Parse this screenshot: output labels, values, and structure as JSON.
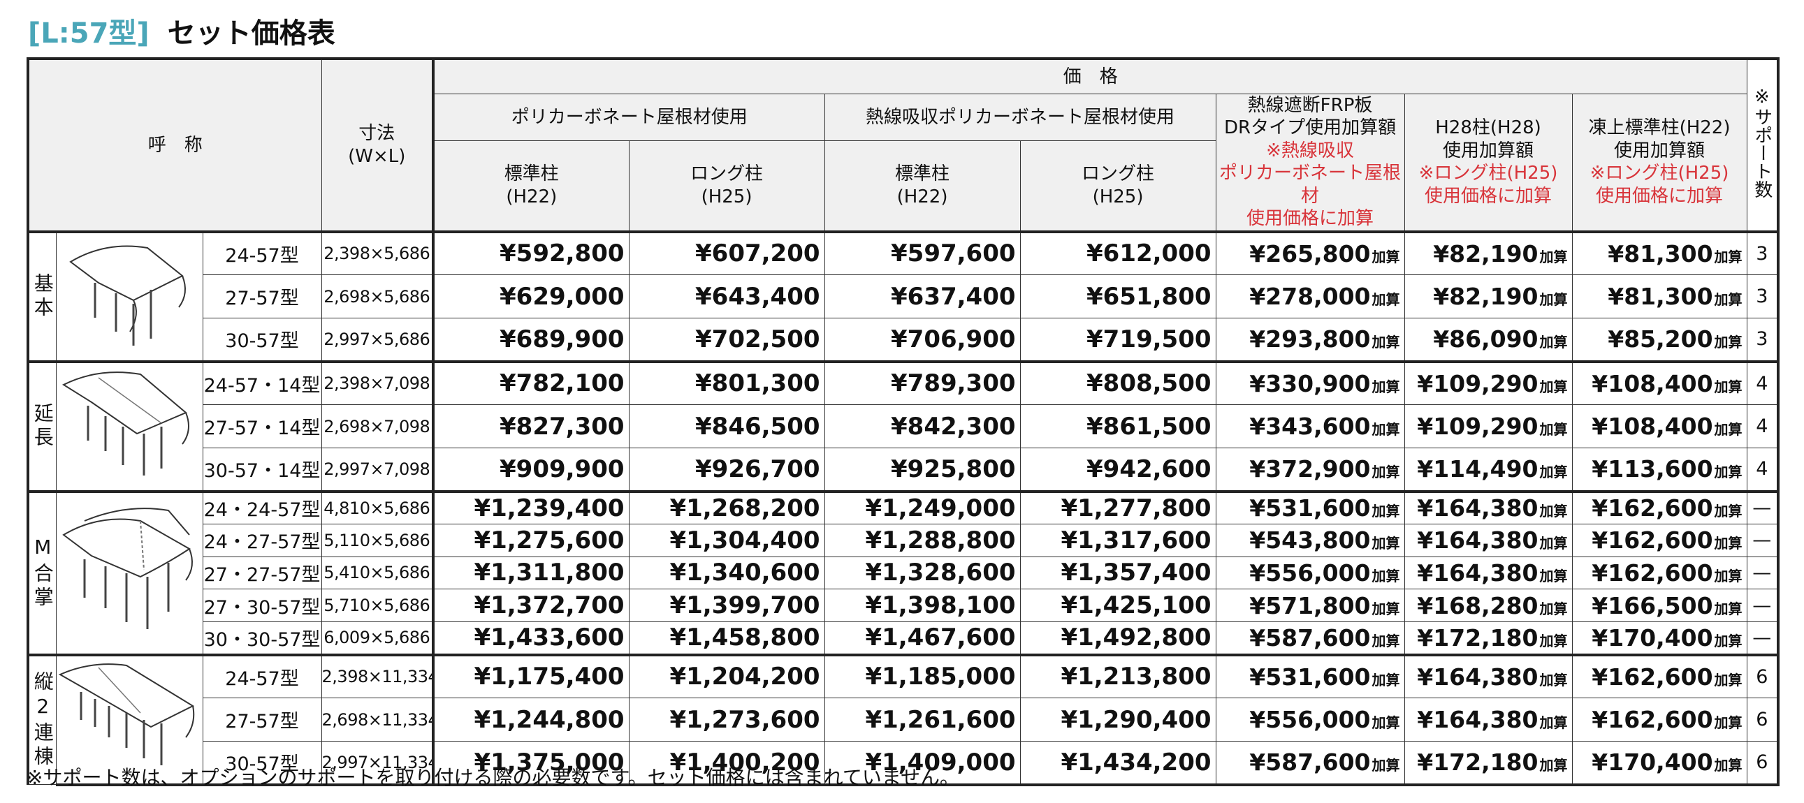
{
  "title": {
    "tag": "[L:57型]",
    "main": "セット価格表"
  },
  "header": {
    "name": "呼　称",
    "dim_line1": "寸法",
    "dim_line2": "(W×L)",
    "price": "価　格",
    "poly": "ポリカーボネート屋根材使用",
    "heat": "熱線吸収ポリカーボネート屋根材使用",
    "frp_l1": "熱線遮断FRP板",
    "frp_l2": "DRタイプ使用加算額",
    "frp_r1": "※熱線吸収",
    "frp_r2": "ポリカーボネート屋根材",
    "frp_r3": "使用価格に加算",
    "h28_l1": "H28柱(H28)",
    "h28_l2": "使用加算額",
    "h28_r1": "※ロング柱(H25)",
    "h28_r2": "使用価格に加算",
    "snow_l1": "凍上標準柱(H22)",
    "snow_l2": "使用加算額",
    "snow_r1": "※ロング柱(H25)",
    "snow_r2": "使用価格に加算",
    "std_l1": "標準柱",
    "std_l2": "(H22)",
    "long_l1": "ロング柱",
    "long_l2": "(H25)",
    "support": "※サポート数"
  },
  "add_suffix": "加算",
  "groups": [
    {
      "label": "基本",
      "rows": [
        {
          "model": "24-57型",
          "dim": "2,398×5,686",
          "p1": "¥592,800",
          "p2": "¥607,200",
          "p3": "¥597,600",
          "p4": "¥612,000",
          "a1": "¥265,800",
          "a2": "¥82,190",
          "a3": "¥81,300",
          "sup": "3"
        },
        {
          "model": "27-57型",
          "dim": "2,698×5,686",
          "p1": "¥629,000",
          "p2": "¥643,400",
          "p3": "¥637,400",
          "p4": "¥651,800",
          "a1": "¥278,000",
          "a2": "¥82,190",
          "a3": "¥81,300",
          "sup": "3"
        },
        {
          "model": "30-57型",
          "dim": "2,997×5,686",
          "p1": "¥689,900",
          "p2": "¥702,500",
          "p3": "¥706,900",
          "p4": "¥719,500",
          "a1": "¥293,800",
          "a2": "¥86,090",
          "a3": "¥85,200",
          "sup": "3"
        }
      ]
    },
    {
      "label": "延長",
      "rows": [
        {
          "model": "24-57・14型",
          "dim": "2,398×7,098",
          "p1": "¥782,100",
          "p2": "¥801,300",
          "p3": "¥789,300",
          "p4": "¥808,500",
          "a1": "¥330,900",
          "a2": "¥109,290",
          "a3": "¥108,400",
          "sup": "4"
        },
        {
          "model": "27-57・14型",
          "dim": "2,698×7,098",
          "p1": "¥827,300",
          "p2": "¥846,500",
          "p3": "¥842,300",
          "p4": "¥861,500",
          "a1": "¥343,600",
          "a2": "¥109,290",
          "a3": "¥108,400",
          "sup": "4"
        },
        {
          "model": "30-57・14型",
          "dim": "2,997×7,098",
          "p1": "¥909,900",
          "p2": "¥926,700",
          "p3": "¥925,800",
          "p4": "¥942,600",
          "a1": "¥372,900",
          "a2": "¥114,490",
          "a3": "¥113,600",
          "sup": "4"
        }
      ]
    },
    {
      "label": "M合掌",
      "rows": [
        {
          "model": "24・24-57型",
          "dim": "4,810×5,686",
          "p1": "¥1,239,400",
          "p2": "¥1,268,200",
          "p3": "¥1,249,000",
          "p4": "¥1,277,800",
          "a1": "¥531,600",
          "a2": "¥164,380",
          "a3": "¥162,600",
          "sup": "—"
        },
        {
          "model": "24・27-57型",
          "dim": "5,110×5,686",
          "p1": "¥1,275,600",
          "p2": "¥1,304,400",
          "p3": "¥1,288,800",
          "p4": "¥1,317,600",
          "a1": "¥543,800",
          "a2": "¥164,380",
          "a3": "¥162,600",
          "sup": "—"
        },
        {
          "model": "27・27-57型",
          "dim": "5,410×5,686",
          "p1": "¥1,311,800",
          "p2": "¥1,340,600",
          "p3": "¥1,328,600",
          "p4": "¥1,357,400",
          "a1": "¥556,000",
          "a2": "¥164,380",
          "a3": "¥162,600",
          "sup": "—"
        },
        {
          "model": "27・30-57型",
          "dim": "5,710×5,686",
          "p1": "¥1,372,700",
          "p2": "¥1,399,700",
          "p3": "¥1,398,100",
          "p4": "¥1,425,100",
          "a1": "¥571,800",
          "a2": "¥168,280",
          "a3": "¥166,500",
          "sup": "—"
        },
        {
          "model": "30・30-57型",
          "dim": "6,009×5,686",
          "p1": "¥1,433,600",
          "p2": "¥1,458,800",
          "p3": "¥1,467,600",
          "p4": "¥1,492,800",
          "a1": "¥587,600",
          "a2": "¥172,180",
          "a3": "¥170,400",
          "sup": "—"
        }
      ]
    },
    {
      "label": "縦2連棟",
      "rows": [
        {
          "model": "24-57型",
          "dim": "2,398×11,334",
          "p1": "¥1,175,400",
          "p2": "¥1,204,200",
          "p3": "¥1,185,000",
          "p4": "¥1,213,800",
          "a1": "¥531,600",
          "a2": "¥164,380",
          "a3": "¥162,600",
          "sup": "6"
        },
        {
          "model": "27-57型",
          "dim": "2,698×11,334",
          "p1": "¥1,244,800",
          "p2": "¥1,273,600",
          "p3": "¥1,261,600",
          "p4": "¥1,290,400",
          "a1": "¥556,000",
          "a2": "¥164,380",
          "a3": "¥162,600",
          "sup": "6"
        },
        {
          "model": "30-57型",
          "dim": "2,997×11,334",
          "p1": "¥1,375,000",
          "p2": "¥1,400,200",
          "p3": "¥1,409,000",
          "p4": "¥1,434,200",
          "a1": "¥587,600",
          "a2": "¥172,180",
          "a3": "¥170,400",
          "sup": "6"
        }
      ]
    }
  ],
  "note": "※サポート数は、オプションのサポートを取り付ける際の必要数です。セット価格には含まれていません。"
}
